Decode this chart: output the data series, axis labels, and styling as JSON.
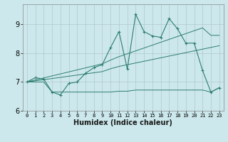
{
  "xlabel": "Humidex (Indice chaleur)",
  "bg_color": "#cce8ec",
  "grid_color": "#b0c8cc",
  "line_color": "#2e7d70",
  "xlim": [
    -0.5,
    23.5
  ],
  "ylim": [
    6.0,
    9.7
  ],
  "yticks": [
    6,
    7,
    8,
    9
  ],
  "xticks": [
    0,
    1,
    2,
    3,
    4,
    5,
    6,
    7,
    8,
    9,
    10,
    11,
    12,
    13,
    14,
    15,
    16,
    17,
    18,
    19,
    20,
    21,
    22,
    23
  ],
  "main_y": [
    7.0,
    7.15,
    7.1,
    6.65,
    6.55,
    6.95,
    7.0,
    7.3,
    7.5,
    7.6,
    8.2,
    8.75,
    7.45,
    9.35,
    8.75,
    8.6,
    8.55,
    9.2,
    8.85,
    8.35,
    8.35,
    7.4,
    6.65,
    6.8
  ],
  "lower_flat_y": [
    7.0,
    7.0,
    7.0,
    6.65,
    6.65,
    6.65,
    6.65,
    6.65,
    6.65,
    6.65,
    6.65,
    6.68,
    6.68,
    6.72,
    6.72,
    6.72,
    6.72,
    6.72,
    6.72,
    6.72,
    6.72,
    6.72,
    6.65,
    6.8
  ],
  "reg_low_y": [
    7.0,
    7.04,
    7.08,
    7.12,
    7.16,
    7.2,
    7.24,
    7.28,
    7.32,
    7.36,
    7.46,
    7.54,
    7.6,
    7.66,
    7.72,
    7.78,
    7.84,
    7.9,
    7.96,
    8.02,
    8.08,
    8.14,
    8.2,
    8.26
  ],
  "reg_high_y": [
    7.0,
    7.07,
    7.14,
    7.21,
    7.28,
    7.35,
    7.42,
    7.49,
    7.56,
    7.63,
    7.76,
    7.88,
    7.98,
    8.08,
    8.18,
    8.28,
    8.38,
    8.48,
    8.58,
    8.68,
    8.78,
    8.88,
    8.62,
    8.62
  ]
}
